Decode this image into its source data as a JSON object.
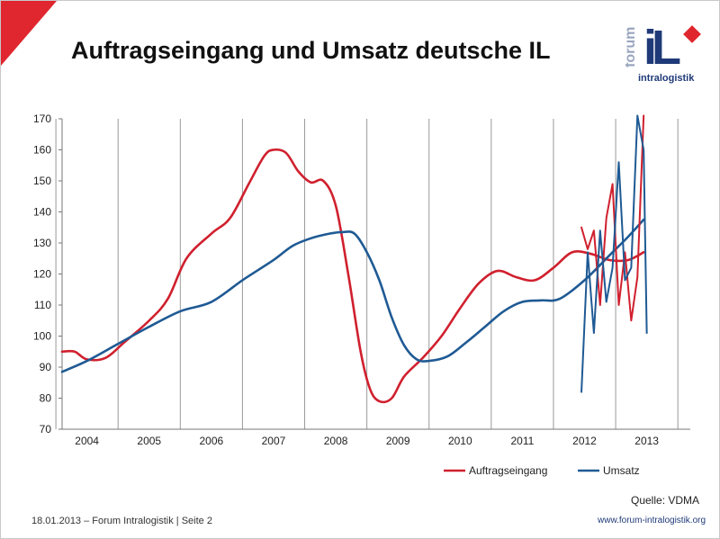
{
  "slide": {
    "title": "Auftragseingang und Umsatz deutsche IL",
    "logo": {
      "word_vertical": "forum",
      "word_horizontal": "intralogistik",
      "letters": "iL"
    },
    "source": "Quelle: VDMA",
    "footer_left": "18.01.2013 – Forum Intralogistik  | Seite 2",
    "footer_right": "www.forum-intralogistik.org"
  },
  "colors": {
    "auftragseingang": "#d0202e",
    "umsatz": "#1f5a94",
    "accent": "#e0262e"
  },
  "chart_data": {
    "type": "line",
    "title": "Auftragseingang und Umsatz deutsche IL",
    "xlabel": "",
    "ylabel": "",
    "ylim": [
      70,
      170
    ],
    "yticks": [
      70,
      80,
      90,
      100,
      110,
      120,
      130,
      140,
      150,
      160,
      170
    ],
    "xlim": [
      2003.6,
      2013.7
    ],
    "xtick_labels": [
      "2004",
      "2005",
      "2006",
      "2007",
      "2008",
      "2009",
      "2010",
      "2011",
      "2012",
      "2013"
    ],
    "xtick_positions": [
      2004,
      2005,
      2006,
      2007,
      2008,
      2009,
      2010,
      2011,
      2012,
      2013
    ],
    "gridlines_x": [
      2003.5,
      2004.5,
      2005.5,
      2006.5,
      2007.5,
      2008.5,
      2009.5,
      2010.5,
      2011.5,
      2012.5,
      2013.5
    ],
    "legend_position": "bottom-right",
    "series": [
      {
        "name": "Auftragseingang",
        "color": "#d0202e",
        "x": [
          2003.6,
          2003.8,
          2004.0,
          2004.3,
          2004.6,
          2005.0,
          2005.3,
          2005.6,
          2006.0,
          2006.3,
          2006.6,
          2006.85,
          2007.0,
          2007.2,
          2007.4,
          2007.6,
          2007.8,
          2008.0,
          2008.2,
          2008.4,
          2008.55,
          2008.7,
          2008.9,
          2009.1,
          2009.4,
          2009.7,
          2010.0,
          2010.3,
          2010.6,
          2010.9,
          2011.2,
          2011.5,
          2011.8,
          2012.1,
          2012.4,
          2012.7,
          2012.95
        ],
        "values": [
          95,
          95,
          92.5,
          93,
          98,
          105,
          112,
          125,
          133,
          138,
          149,
          158,
          160,
          159,
          153,
          149.5,
          150,
          142,
          120,
          95,
          83,
          79,
          80,
          87,
          93,
          100,
          109,
          117,
          121,
          119,
          118,
          122,
          127,
          126.5,
          124.5,
          124.5,
          127
        ]
      },
      {
        "name": "Umsatz",
        "color": "#1f5a94",
        "x": [
          2003.6,
          2004.0,
          2004.5,
          2005.0,
          2005.5,
          2006.0,
          2006.5,
          2007.0,
          2007.3,
          2007.6,
          2007.9,
          2008.1,
          2008.3,
          2008.5,
          2008.7,
          2008.9,
          2009.1,
          2009.3,
          2009.5,
          2009.8,
          2010.1,
          2010.4,
          2010.7,
          2011.0,
          2011.3,
          2011.6,
          2012.0,
          2012.4,
          2012.7,
          2012.95
        ],
        "values": [
          88.5,
          92,
          97.5,
          103,
          108,
          111,
          118,
          124.5,
          129,
          131.5,
          133,
          133.5,
          133,
          127,
          118,
          106,
          97,
          92.5,
          92,
          93.5,
          98,
          103,
          108,
          111,
          111.5,
          112,
          118,
          126,
          132,
          137.5
        ]
      },
      {
        "name": "Auftragseingang (Monatswerte)",
        "color": "#d0202e",
        "show_in_legend": false,
        "x": [
          2011.95,
          2012.05,
          2012.15,
          2012.25,
          2012.35,
          2012.45,
          2012.55,
          2012.65,
          2012.75,
          2012.85,
          2012.95
        ],
        "values": [
          135,
          128,
          134,
          110,
          138,
          149,
          110,
          127,
          105,
          119,
          171
        ]
      },
      {
        "name": "Umsatz (Monatswerte)",
        "color": "#1f5a94",
        "show_in_legend": false,
        "x": [
          2011.95,
          2012.05,
          2012.15,
          2012.25,
          2012.35,
          2012.45,
          2012.55,
          2012.65,
          2012.75,
          2012.85,
          2012.95,
          2013.0
        ],
        "values": [
          82,
          127,
          101,
          134,
          111,
          122,
          156,
          118,
          122,
          171,
          160,
          101
        ]
      }
    ]
  }
}
